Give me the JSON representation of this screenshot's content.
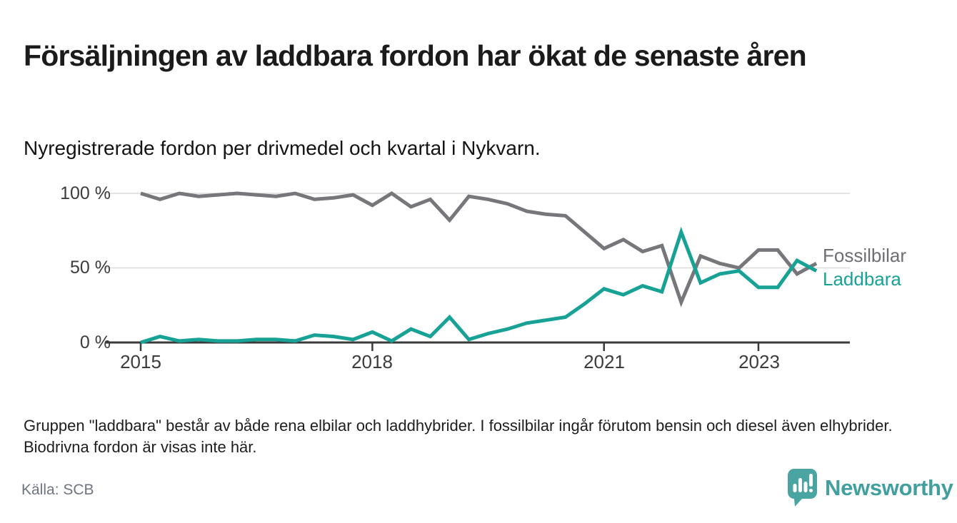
{
  "header": {
    "title": "Försäljningen av laddbara fordon har ökat de senaste åren",
    "subtitle": "Nyregistrerade fordon per drivmedel och kvartal i Nykvarn."
  },
  "chart_data": {
    "type": "line",
    "x": [
      "2015 Q1",
      "2015 Q2",
      "2015 Q3",
      "2015 Q4",
      "2016 Q1",
      "2016 Q2",
      "2016 Q3",
      "2016 Q4",
      "2017 Q1",
      "2017 Q2",
      "2017 Q3",
      "2017 Q4",
      "2018 Q1",
      "2018 Q2",
      "2018 Q3",
      "2018 Q4",
      "2019 Q1",
      "2019 Q2",
      "2019 Q3",
      "2019 Q4",
      "2020 Q1",
      "2020 Q2",
      "2020 Q3",
      "2020 Q4",
      "2021 Q1",
      "2021 Q2",
      "2021 Q3",
      "2021 Q4",
      "2022 Q1",
      "2022 Q2",
      "2022 Q3",
      "2022 Q4",
      "2023 Q1",
      "2023 Q2",
      "2023 Q3",
      "2023 Q4"
    ],
    "series": [
      {
        "name": "Fossilbilar",
        "color": "#76767b",
        "values": [
          100,
          96,
          100,
          98,
          99,
          100,
          99,
          98,
          100,
          96,
          97,
          99,
          92,
          100,
          91,
          96,
          82,
          98,
          96,
          93,
          88,
          86,
          85,
          74,
          63,
          69,
          61,
          65,
          27,
          58,
          53,
          50,
          62,
          62,
          46,
          53
        ]
      },
      {
        "name": "Laddbara",
        "color": "#18a296",
        "values": [
          0,
          4,
          1,
          2,
          1,
          1,
          2,
          2,
          1,
          5,
          4,
          2,
          7,
          1,
          9,
          4,
          17,
          2,
          6,
          9,
          13,
          15,
          17,
          26,
          36,
          32,
          38,
          34,
          74,
          40,
          46,
          48,
          37,
          37,
          55,
          48
        ]
      }
    ],
    "unit": "%",
    "ylim": [
      0,
      100
    ],
    "y_ticks": [
      {
        "label": "0 %",
        "value": 0
      },
      {
        "label": "50 %",
        "value": 50
      },
      {
        "label": "100 %",
        "value": 100
      }
    ],
    "x_ticks": [
      {
        "label": "2015",
        "index": 0
      },
      {
        "label": "2018",
        "index": 12
      },
      {
        "label": "2021",
        "index": 24
      },
      {
        "label": "2023",
        "index": 32
      }
    ],
    "legend": [
      {
        "label": "Fossilbilar",
        "color": "#6e6e73"
      },
      {
        "label": "Laddbara",
        "color": "#18a296"
      }
    ],
    "legend_position": "right-of-line-ends",
    "grid": "horizontal",
    "grid_color": "#dcdcdc",
    "axis_color": "#3a3a3a"
  },
  "footer": {
    "note": "Gruppen \"laddbara\" består av både rena elbilar och laddhybrider. I fossilbilar ingår förutom bensin och diesel även elhybrider. Biodrivna fordon är visas inte här.",
    "source": "Källa: SCB"
  },
  "branding": {
    "logo_text": "Newsworthy",
    "logo_icon": "bar-chart-badge-icon",
    "accent_color": "#429f9f"
  }
}
